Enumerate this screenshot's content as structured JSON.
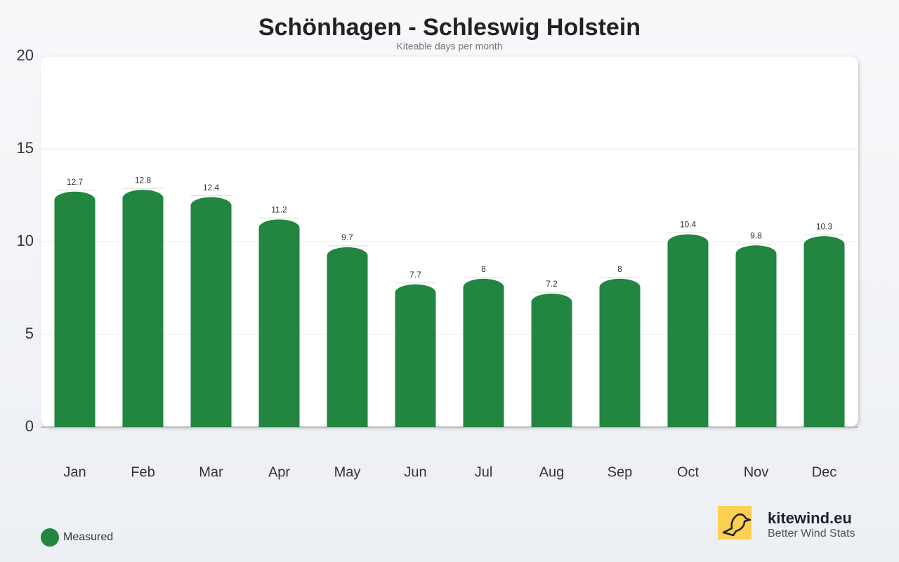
{
  "chart_data": {
    "type": "bar",
    "title": "Schönhagen - Schleswig Holstein",
    "subtitle": "Kiteable days per month",
    "categories": [
      "Jan",
      "Feb",
      "Mar",
      "Apr",
      "May",
      "Jun",
      "Jul",
      "Aug",
      "Sep",
      "Oct",
      "Nov",
      "Dec"
    ],
    "series": [
      {
        "name": "Measured",
        "color": "#228540",
        "values": [
          12.7,
          12.8,
          12.4,
          11.2,
          9.7,
          7.7,
          8,
          7.2,
          8,
          10.4,
          9.8,
          10.3
        ]
      }
    ],
    "ylim": [
      0,
      20
    ],
    "yticks": [
      0,
      5,
      10,
      15,
      20
    ],
    "grid": true,
    "legend": "bottom-left",
    "brand": {
      "name": "kitewind.eu",
      "tagline": "Better Wind Stats"
    }
  }
}
